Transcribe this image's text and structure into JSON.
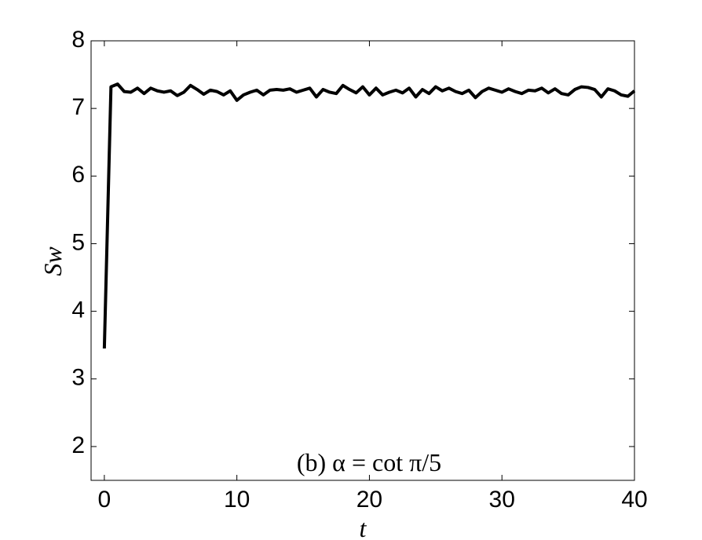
{
  "chart_data": {
    "type": "line",
    "annotation": "(b) α = cot π/5",
    "xlabel": "t",
    "ylabel": "Sw",
    "xlim": [
      -1,
      40
    ],
    "xticks": [
      0,
      10,
      20,
      30,
      40
    ],
    "ylim": [
      1.5,
      8
    ],
    "yticks": [
      2,
      3,
      4,
      5,
      6,
      7,
      8
    ],
    "series": [
      {
        "color": "#000000",
        "x": [
          0,
          0.5,
          1,
          1.5,
          2,
          2.5,
          3,
          3.5,
          4,
          4.5,
          5,
          5.5,
          6,
          6.5,
          7,
          7.5,
          8,
          8.5,
          9,
          9.5,
          10,
          10.5,
          11,
          11.5,
          12,
          12.5,
          13,
          13.5,
          14,
          14.5,
          15,
          15.5,
          16,
          16.5,
          17,
          17.5,
          18,
          18.5,
          19,
          19.5,
          20,
          20.5,
          21,
          21.5,
          22,
          22.5,
          23,
          23.5,
          24,
          24.5,
          25,
          25.5,
          26,
          26.5,
          27,
          27.5,
          28,
          28.5,
          29,
          29.5,
          30,
          30.5,
          31,
          31.5,
          32,
          32.5,
          33,
          33.5,
          34,
          34.5,
          35,
          35.5,
          36,
          36.5,
          37,
          37.5,
          38,
          38.5,
          39,
          39.5,
          40
        ],
        "values": [
          3.45,
          7.32,
          7.36,
          7.25,
          7.24,
          7.3,
          7.22,
          7.3,
          7.26,
          7.24,
          7.26,
          7.19,
          7.24,
          7.34,
          7.28,
          7.21,
          7.27,
          7.25,
          7.2,
          7.26,
          7.12,
          7.2,
          7.24,
          7.27,
          7.2,
          7.27,
          7.28,
          7.27,
          7.29,
          7.24,
          7.27,
          7.3,
          7.17,
          7.28,
          7.24,
          7.22,
          7.34,
          7.28,
          7.23,
          7.32,
          7.2,
          7.3,
          7.2,
          7.24,
          7.27,
          7.23,
          7.3,
          7.17,
          7.28,
          7.22,
          7.32,
          7.26,
          7.3,
          7.25,
          7.22,
          7.27,
          7.16,
          7.25,
          7.3,
          7.27,
          7.24,
          7.29,
          7.25,
          7.22,
          7.27,
          7.26,
          7.3,
          7.23,
          7.29,
          7.22,
          7.2,
          7.28,
          7.32,
          7.31,
          7.28,
          7.17,
          7.29,
          7.26,
          7.2,
          7.18,
          7.26
        ]
      }
    ]
  }
}
